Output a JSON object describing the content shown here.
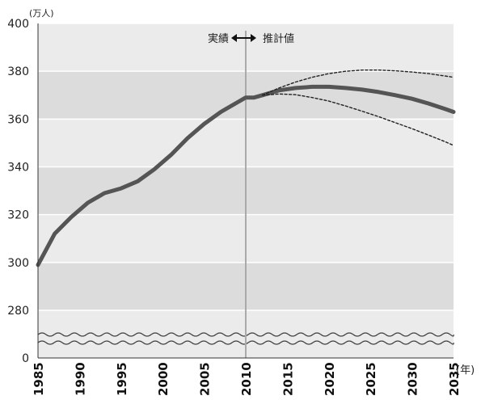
{
  "chart_data": {
    "type": "line",
    "y_unit": "(万人)",
    "x_unit": "(年)",
    "x_ticks": [
      "1985",
      "1990",
      "1995",
      "2000",
      "2005",
      "2010",
      "2015",
      "2020",
      "2025",
      "2030",
      "2035"
    ],
    "y_ticks": [
      "0",
      "280",
      "300",
      "320",
      "340",
      "360",
      "380",
      "400"
    ],
    "ylim": [
      280,
      400
    ],
    "xlim": [
      1985,
      2035
    ],
    "axis_break": true,
    "divider_year": 2010,
    "annotation_left": "実績",
    "annotation_right": "推計値",
    "grid": true,
    "series": [
      {
        "style": "solid",
        "x": [
          1985,
          1987,
          1989,
          1991,
          1993,
          1995,
          1997,
          1999,
          2001,
          2003,
          2005,
          2007,
          2009,
          2010,
          2011,
          2012
        ],
        "values": [
          299,
          312,
          319,
          325,
          329,
          331,
          334,
          339,
          345,
          352,
          358,
          363,
          367,
          369,
          369,
          370
        ]
      },
      {
        "style": "solid",
        "x": [
          2012,
          2014,
          2016,
          2018,
          2020,
          2022,
          2024,
          2026,
          2028,
          2030,
          2032,
          2034,
          2035
        ],
        "values": [
          370,
          372,
          373,
          373.5,
          373.5,
          373,
          372.3,
          371.3,
          370,
          368.5,
          366.5,
          364.2,
          363
        ]
      },
      {
        "style": "dashed",
        "x": [
          2012,
          2014,
          2016,
          2018,
          2020,
          2022,
          2024,
          2026,
          2028,
          2030,
          2032,
          2034,
          2035
        ],
        "values": [
          370,
          373,
          375.5,
          377.5,
          379,
          380,
          380.5,
          380.5,
          380.2,
          379.7,
          379,
          378,
          377.5
        ]
      },
      {
        "style": "dashed",
        "x": [
          2012,
          2014,
          2016,
          2018,
          2020,
          2022,
          2024,
          2026,
          2028,
          2030,
          2032,
          2034,
          2035
        ],
        "values": [
          370,
          370.5,
          370.2,
          369,
          367.5,
          365.5,
          363.3,
          361,
          358.5,
          356,
          353.3,
          350.5,
          349
        ]
      }
    ]
  }
}
